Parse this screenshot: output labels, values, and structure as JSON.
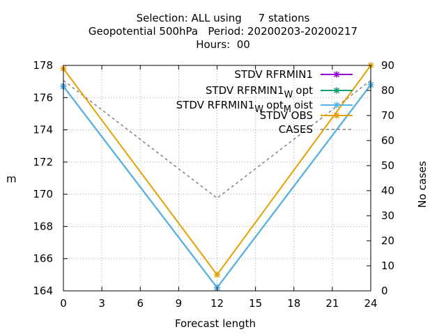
{
  "chart_data": {
    "type": "line",
    "title_lines": [
      "Selection: ALL using     7 stations",
      "Geopotential 500hPa   Period: 20200203-20200217",
      "Hours:  00"
    ],
    "xlabel": "Forecast length",
    "ylabel": "m",
    "y2label": "No cases",
    "x": [
      0,
      12,
      24
    ],
    "xticks": [
      0,
      3,
      6,
      9,
      12,
      15,
      18,
      21,
      24
    ],
    "xlim": [
      0,
      24
    ],
    "ylim": [
      164,
      178
    ],
    "yticks": [
      164,
      166,
      168,
      170,
      172,
      174,
      176,
      178
    ],
    "y2lim": [
      0,
      90
    ],
    "y2ticks": [
      0,
      10,
      20,
      30,
      40,
      50,
      60,
      70,
      80,
      90
    ],
    "grid": true,
    "legend_position": "top-right",
    "series": [
      {
        "name": "STDV RFRMIN1",
        "legend": {
          "base": "STDV RFRMIN1"
        },
        "color": "#9400d3",
        "marker": "x",
        "axis": "y",
        "values": [
          176.7,
          164.2,
          176.8
        ]
      },
      {
        "name": "STDV RFRMIN1_W opt",
        "legend": {
          "base": "STDV RFRMIN1",
          "sub1": "W",
          "rest1": "opt"
        },
        "color": "#009e73",
        "marker": "x",
        "axis": "y",
        "values": [
          176.7,
          164.2,
          176.8
        ]
      },
      {
        "name": "STDV RFRMIN1_W opt_M oist",
        "legend": {
          "base": "STDV RFRMIN1",
          "sub1": "W",
          "rest1": "opt",
          "sub2": "M",
          "rest2": "oist"
        },
        "color": "#56b4e9",
        "marker": "x",
        "axis": "y",
        "values": [
          176.7,
          164.2,
          176.8
        ]
      },
      {
        "name": "STDV OBS",
        "legend": {
          "base": "STDV OBS"
        },
        "color": "#e69f00",
        "marker": "x",
        "axis": "y",
        "values": [
          177.8,
          165.0,
          178.0
        ]
      },
      {
        "name": "CASES",
        "legend": {
          "base": "CASES"
        },
        "color": "#808080",
        "marker": "none",
        "dash": true,
        "axis": "y2",
        "values": [
          84,
          37,
          84
        ]
      }
    ]
  }
}
